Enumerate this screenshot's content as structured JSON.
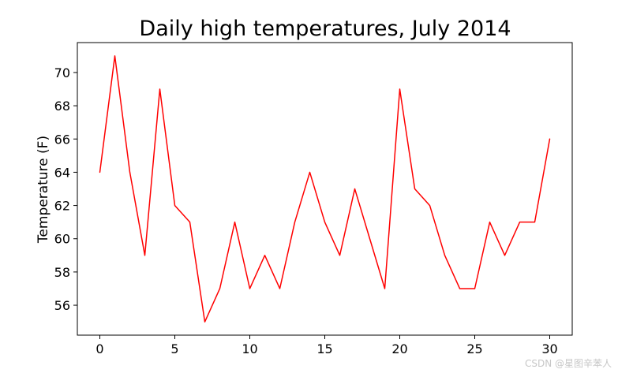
{
  "chart_data": {
    "type": "line",
    "title": "Daily high temperatures, July 2014",
    "xlabel": "",
    "ylabel": "Temperature (F)",
    "x": [
      0,
      1,
      2,
      3,
      4,
      5,
      6,
      7,
      8,
      9,
      10,
      11,
      12,
      13,
      14,
      15,
      16,
      17,
      18,
      19,
      20,
      21,
      22,
      23,
      24,
      25,
      26,
      27,
      28,
      29,
      30
    ],
    "series": [
      {
        "color": "#ff0000",
        "values": [
          64,
          71,
          64,
          59,
          69,
          62,
          61,
          55,
          57,
          61,
          57,
          59,
          57,
          61,
          64,
          61,
          59,
          63,
          60,
          57,
          69,
          63,
          62,
          59,
          57,
          57,
          61,
          59,
          61,
          61,
          66
        ]
      }
    ],
    "xlim": [
      -1.5,
      31.5
    ],
    "ylim": [
      54.2,
      71.8
    ],
    "xticks": [
      0,
      5,
      10,
      15,
      20,
      25,
      30
    ],
    "yticks": [
      56,
      58,
      60,
      62,
      64,
      66,
      68,
      70
    ],
    "grid": false,
    "legend": false
  },
  "watermark": "CSDN @星图辛苯人"
}
